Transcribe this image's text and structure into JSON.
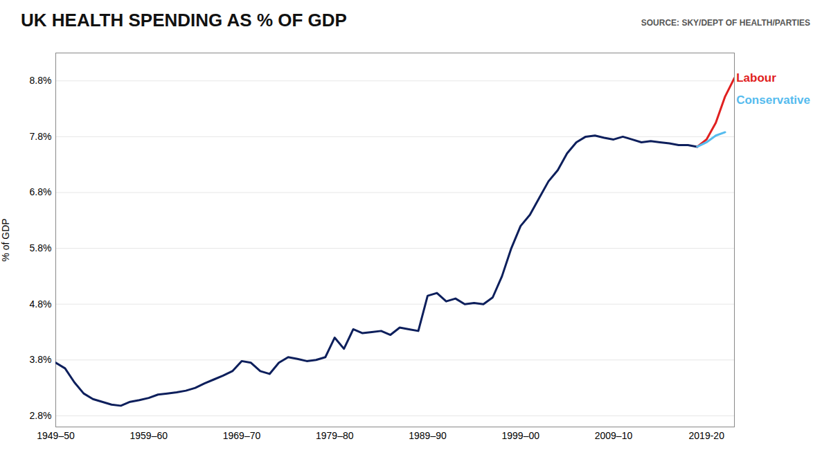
{
  "chart_data": {
    "type": "line",
    "title": "UK HEALTH SPENDING AS % OF GDP",
    "source": "SOURCE: SKY/DEPT OF HEALTH/PARTIES",
    "ylabel": "% of GDP",
    "xlim": [
      0,
      73
    ],
    "xticks": [
      {
        "value": 0,
        "label": "1949–50"
      },
      {
        "value": 10,
        "label": "1959–60"
      },
      {
        "value": 20,
        "label": "1969–70"
      },
      {
        "value": 30,
        "label": "1979–80"
      },
      {
        "value": 40,
        "label": "1989–90"
      },
      {
        "value": 50,
        "label": "1999–00"
      },
      {
        "value": 60,
        "label": "2009–10"
      },
      {
        "value": 70,
        "label": "2019-20"
      }
    ],
    "ylim": [
      2.6,
      9.3
    ],
    "yticks": [
      {
        "value": 2.8,
        "label": "2.8%"
      },
      {
        "value": 3.8,
        "label": "3.8%"
      },
      {
        "value": 4.8,
        "label": "4.8%"
      },
      {
        "value": 5.8,
        "label": "5.8%"
      },
      {
        "value": 6.8,
        "label": "6.8%"
      },
      {
        "value": 7.8,
        "label": "7.8%"
      },
      {
        "value": 8.8,
        "label": "8.8%"
      }
    ],
    "grid": true,
    "series": [
      {
        "color": "#0d1f5c",
        "x": [
          0,
          1,
          2,
          3,
          4,
          5,
          6,
          7,
          8,
          9,
          10,
          11,
          12,
          13,
          14,
          15,
          16,
          17,
          18,
          19,
          20,
          21,
          22,
          23,
          24,
          25,
          26,
          27,
          28,
          29,
          30,
          31,
          32,
          33,
          34,
          35,
          36,
          37,
          38,
          39,
          40,
          41,
          42,
          43,
          44,
          45,
          46,
          47,
          48,
          49,
          50,
          51,
          52,
          53,
          54,
          55,
          56,
          57,
          58,
          59,
          60,
          61,
          62,
          63,
          64,
          65,
          66,
          67,
          68,
          69
        ],
        "values": [
          3.75,
          3.65,
          3.4,
          3.2,
          3.1,
          3.05,
          3.0,
          2.98,
          3.05,
          3.08,
          3.12,
          3.18,
          3.2,
          3.22,
          3.25,
          3.3,
          3.38,
          3.45,
          3.52,
          3.6,
          3.78,
          3.75,
          3.6,
          3.55,
          3.75,
          3.85,
          3.82,
          3.78,
          3.8,
          3.85,
          4.2,
          4.0,
          4.35,
          4.28,
          4.3,
          4.32,
          4.25,
          4.38,
          4.35,
          4.32,
          4.95,
          5.0,
          4.85,
          4.9,
          4.8,
          4.82,
          4.8,
          4.92,
          5.3,
          5.8,
          6.2,
          6.4,
          6.7,
          7.0,
          7.2,
          7.5,
          7.7,
          7.8,
          7.82,
          7.78,
          7.75,
          7.8,
          7.75,
          7.7,
          7.72,
          7.7,
          7.68,
          7.65,
          7.65,
          7.62
        ]
      },
      {
        "color": "#e02020",
        "x": [
          69,
          70,
          71,
          72,
          73
        ],
        "values": [
          7.62,
          7.75,
          8.05,
          8.52,
          8.85
        ]
      },
      {
        "color": "#55bbee",
        "x": [
          69,
          70,
          71,
          72
        ],
        "values": [
          7.62,
          7.7,
          7.82,
          7.88
        ]
      }
    ],
    "annotations": [
      {
        "text": "Labour",
        "x": 73.2,
        "y": 8.85,
        "color": "#e02020"
      },
      {
        "text": "Conservative",
        "x": 73.2,
        "y": 8.45,
        "color": "#55bbee"
      }
    ]
  }
}
